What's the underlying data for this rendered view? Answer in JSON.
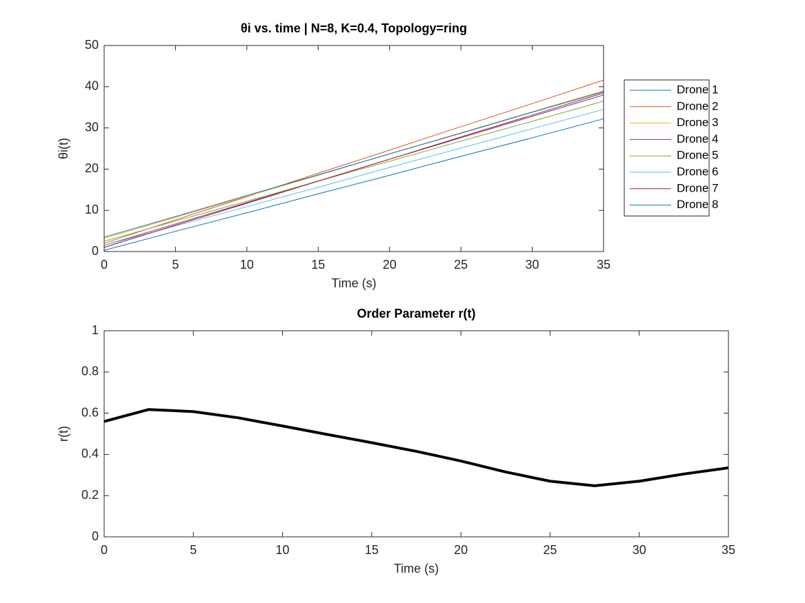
{
  "chart_data": [
    {
      "type": "line",
      "title": "θi vs. time | N=8, K=0.4, Topology=ring",
      "xlabel": "Time (s)",
      "ylabel": "θi(t)",
      "x": [
        0,
        5,
        10,
        15,
        20,
        25,
        30,
        35
      ],
      "xlim": [
        0,
        35
      ],
      "xticks": [
        0,
        5,
        10,
        15,
        20,
        25,
        30,
        35
      ],
      "ylim": [
        0,
        50
      ],
      "yticks": [
        0,
        10,
        20,
        30,
        40,
        50
      ],
      "legend": "northeastoutside",
      "line_width": 1,
      "series": [
        {
          "name": "Drone 1",
          "color": "#0072BD",
          "values": [
            0.3,
            4.9,
            9.4,
            14.0,
            18.5,
            23.1,
            27.6,
            32.2
          ]
        },
        {
          "name": "Drone 2",
          "color": "#D95319",
          "values": [
            2,
            7.7,
            13.3,
            19.0,
            24.6,
            30.3,
            35.9,
            41.6
          ]
        },
        {
          "name": "Drone 3",
          "color": "#EDB120",
          "values": [
            3.2,
            8.3,
            13.4,
            18.5,
            23.7,
            28.8,
            33.9,
            39
          ]
        },
        {
          "name": "Drone 4",
          "color": "#7E2F8E",
          "values": [
            1.5,
            6.7,
            11.9,
            17.1,
            22.4,
            27.6,
            32.8,
            38
          ]
        },
        {
          "name": "Drone 5",
          "color": "#77AC30",
          "values": [
            2.5,
            7.4,
            12.2,
            17.1,
            21.9,
            26.8,
            31.6,
            36.5
          ]
        },
        {
          "name": "Drone 6",
          "color": "#4DBEEE",
          "values": [
            1.5,
            6.2,
            10.9,
            15.6,
            20.4,
            25.1,
            29.8,
            34.5
          ]
        },
        {
          "name": "Drone 7",
          "color": "#A2142F",
          "values": [
            1,
            6.4,
            11.7,
            17.1,
            22.4,
            27.8,
            33.1,
            38.5
          ]
        },
        {
          "name": "Drone 8",
          "color": "#0072BD",
          "values": [
            3.5,
            8.5,
            13.6,
            18.6,
            23.7,
            28.7,
            33.8,
            38.8
          ]
        }
      ]
    },
    {
      "type": "line",
      "title": "Order Parameter r(t)",
      "xlabel": "Time (s)",
      "ylabel": "r(t)",
      "x": [
        0,
        2.5,
        5,
        7.5,
        10,
        12.5,
        15,
        17.5,
        20,
        22.5,
        25,
        27.5,
        30,
        32.5,
        35
      ],
      "xlim": [
        0,
        35
      ],
      "xticks": [
        0,
        5,
        10,
        15,
        20,
        25,
        30,
        35
      ],
      "ylim": [
        0,
        1
      ],
      "yticks": [
        0,
        0.2,
        0.4,
        0.6,
        0.8,
        1
      ],
      "line_width": 4,
      "series": [
        {
          "color": "#000000",
          "values": [
            0.56,
            0.618,
            0.608,
            0.578,
            0.538,
            0.497,
            0.457,
            0.415,
            0.368,
            0.315,
            0.27,
            0.248,
            0.27,
            0.305,
            0.335
          ]
        }
      ]
    }
  ]
}
